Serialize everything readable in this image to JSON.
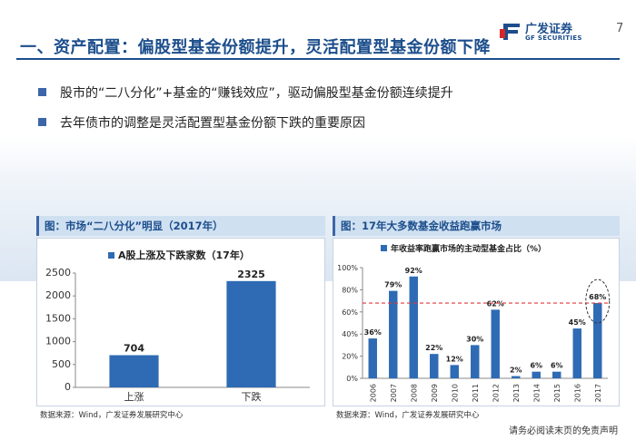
{
  "slide": {
    "title": "一、资产配置：偏股型基金份额提升，灵活配置型基金份额下降",
    "page_number": "7",
    "logo": {
      "name_cn": "广发证券",
      "name_en": "GF SECURITIES"
    },
    "bullets": [
      "股市的“二八分化”+基金的“赚钱效应”，驱动偏股型基金份额连续提升",
      "去年债市的调整是灵活配置型基金份额下跌的重要原因"
    ],
    "disclaimer": "请务必阅读末页的免责声明"
  },
  "colors": {
    "brand": "#1c4e8c",
    "bar": "#2e6bb4",
    "threshold_line": "#e03a3a",
    "header_bg": "#cfe0f1"
  },
  "panels": [
    {
      "header": "图：市场“二八分化”明显（2017年）",
      "source": "数据来源：Wind，广发证券发展研究中心"
    },
    {
      "header": "图：17年大多数基金收益跑赢市场",
      "source": "数据来源：Wind，广发证券发展研究中心"
    }
  ],
  "chart_data": [
    {
      "type": "bar",
      "title": "",
      "categories": [
        "上涨",
        "下跌"
      ],
      "series": [
        {
          "name": "A股上涨及下跌家数（17年）",
          "values": [
            704,
            2325
          ]
        }
      ],
      "ylim": [
        0,
        2500
      ],
      "yticks": [
        "0",
        "500",
        "1000",
        "1500",
        "2000",
        "2500"
      ],
      "data_labels": [
        "704",
        "2325"
      ],
      "legend": "top",
      "grid": false
    },
    {
      "type": "bar",
      "title": "",
      "categories": [
        "2006",
        "2007",
        "2008",
        "2009",
        "2010",
        "2011",
        "2012",
        "2013",
        "2014",
        "2015",
        "2016",
        "2017"
      ],
      "series": [
        {
          "name": "年收益率跑赢市场的主动型基金占比（%）",
          "values": [
            36,
            79,
            92,
            22,
            12,
            30,
            62,
            2,
            6,
            6,
            45,
            68
          ]
        }
      ],
      "ylim": [
        0,
        100
      ],
      "yticks": [
        "0%",
        "20%",
        "40%",
        "60%",
        "80%",
        "100%"
      ],
      "data_labels": [
        "36%",
        "79%",
        "92%",
        "22%",
        "12%",
        "30%",
        "62%",
        "2%",
        "6%",
        "6%",
        "45%",
        "68%"
      ],
      "reference_line": {
        "value": 68,
        "style": "dashed",
        "color": "#e03a3a"
      },
      "highlight": {
        "category": "2017",
        "style": "dashed-ellipse"
      },
      "legend": "top",
      "grid": false
    }
  ]
}
